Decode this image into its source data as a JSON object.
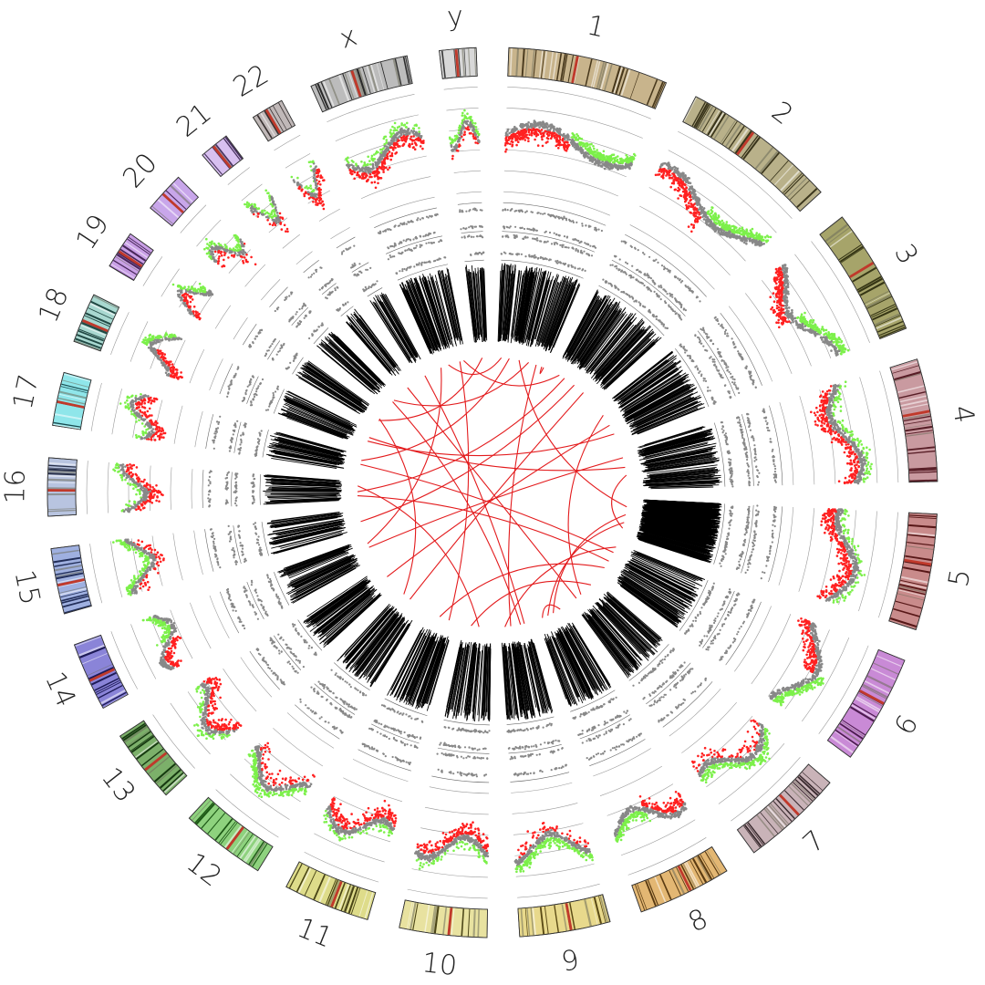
{
  "chart_data": {
    "type": "circos",
    "title": "",
    "chromosomes": [
      {
        "name": "1",
        "length": 249,
        "band_color": "#c8b48c",
        "dark_color": "#3a2a10"
      },
      {
        "name": "2",
        "length": 243,
        "band_color": "#b9b18a",
        "dark_color": "#2c2810"
      },
      {
        "name": "3",
        "length": 198,
        "band_color": "#a6a46a",
        "dark_color": "#2a2a0c"
      },
      {
        "name": "4",
        "length": 191,
        "band_color": "#c99aa0",
        "dark_color": "#4a1018"
      },
      {
        "name": "5",
        "length": 181,
        "band_color": "#c98b8b",
        "dark_color": "#4a0a0a"
      },
      {
        "name": "6",
        "length": 171,
        "band_color": "#c98ad6",
        "dark_color": "#3e1040"
      },
      {
        "name": "7",
        "length": 159,
        "band_color": "#c9b3b8",
        "dark_color": "#2a1c20"
      },
      {
        "name": "8",
        "length": 146,
        "band_color": "#e3b773",
        "dark_color": "#4a2e08"
      },
      {
        "name": "9",
        "length": 141,
        "band_color": "#e8d98c",
        "dark_color": "#4a3a08"
      },
      {
        "name": "10",
        "length": 136,
        "band_color": "#e8e2a0",
        "dark_color": "#3a3408"
      },
      {
        "name": "11",
        "length": 135,
        "band_color": "#dedc8a",
        "dark_color": "#383408"
      },
      {
        "name": "12",
        "length": 133,
        "band_color": "#8ed27e",
        "dark_color": "#104a0a"
      },
      {
        "name": "13",
        "length": 115,
        "band_color": "#7cb06a",
        "dark_color": "#0c2e08"
      },
      {
        "name": "14",
        "length": 107,
        "band_color": "#8a84d8",
        "dark_color": "#12104a"
      },
      {
        "name": "15",
        "length": 102,
        "band_color": "#9fb0e0",
        "dark_color": "#14204a"
      },
      {
        "name": "16",
        "length": 90,
        "band_color": "#b8c4e0",
        "dark_color": "#18203a"
      },
      {
        "name": "17",
        "length": 83,
        "band_color": "#8fe6ea",
        "dark_color": "#0c3a3e"
      },
      {
        "name": "18",
        "length": 78,
        "band_color": "#a8d8d0",
        "dark_color": "#123a34"
      },
      {
        "name": "19",
        "length": 59,
        "band_color": "#c9a0e6",
        "dark_color": "#3a1a4a"
      },
      {
        "name": "20",
        "length": 64,
        "band_color": "#c8a6ea",
        "dark_color": "#3a1c4e"
      },
      {
        "name": "21",
        "length": 47,
        "band_color": "#d8c0f0",
        "dark_color": "#3a2450"
      },
      {
        "name": "22",
        "length": 51,
        "band_color": "#c0b8b8",
        "dark_color": "#2a2424"
      },
      {
        "name": "x",
        "length": 155,
        "band_color": "#bcbcbc",
        "dark_color": "#1a1a1a"
      },
      {
        "name": "y",
        "length": 57,
        "band_color": "#d8d8d8",
        "dark_color": "#2a2a2a"
      }
    ],
    "tracks": [
      {
        "name": "copy-number scatter",
        "colors": {
          "gain": "#ff2020",
          "loss": "#7cf04a",
          "neutral": "#888888"
        }
      },
      {
        "name": "B-allele frequency scatter",
        "color": "#888888"
      },
      {
        "name": "mutation density ticks",
        "color": "#000000"
      },
      {
        "name": "structural variant links",
        "color": "#e31a1c"
      }
    ],
    "copy_number_state": [
      {
        "chrom": "1",
        "state": "mixed"
      },
      {
        "chrom": "2",
        "state": "mixed"
      },
      {
        "chrom": "3",
        "state": "mixed"
      },
      {
        "chrom": "4",
        "state": "gain"
      },
      {
        "chrom": "5",
        "state": "gain"
      },
      {
        "chrom": "6",
        "state": "mixed"
      },
      {
        "chrom": "7",
        "state": "loss"
      },
      {
        "chrom": "8",
        "state": "mixed"
      },
      {
        "chrom": "9",
        "state": "loss"
      },
      {
        "chrom": "10",
        "state": "gain"
      },
      {
        "chrom": "11",
        "state": "gain"
      },
      {
        "chrom": "12",
        "state": "loss"
      },
      {
        "chrom": "13",
        "state": "gain"
      },
      {
        "chrom": "14",
        "state": "mixed"
      },
      {
        "chrom": "15",
        "state": "loss"
      },
      {
        "chrom": "16",
        "state": "gain"
      },
      {
        "chrom": "17",
        "state": "gain"
      },
      {
        "chrom": "18",
        "state": "mixed"
      },
      {
        "chrom": "19",
        "state": "mixed"
      },
      {
        "chrom": "20",
        "state": "loss"
      },
      {
        "chrom": "21",
        "state": "loss"
      },
      {
        "chrom": "22",
        "state": "gain"
      },
      {
        "chrom": "x",
        "state": "gain"
      },
      {
        "chrom": "y",
        "state": "loss"
      }
    ],
    "links": [
      {
        "from": [
          "1",
          20
        ],
        "to": [
          "x",
          60
        ]
      },
      {
        "from": [
          "1",
          110
        ],
        "to": [
          "5",
          40
        ]
      },
      {
        "from": [
          "1",
          200
        ],
        "to": [
          "9",
          90
        ]
      },
      {
        "from": [
          "2",
          60
        ],
        "to": [
          "16",
          40
        ]
      },
      {
        "from": [
          "2",
          180
        ],
        "to": [
          "12",
          70
        ]
      },
      {
        "from": [
          "3",
          40
        ],
        "to": [
          "7",
          100
        ]
      },
      {
        "from": [
          "3",
          150
        ],
        "to": [
          "18",
          30
        ]
      },
      {
        "from": [
          "4",
          30
        ],
        "to": [
          "14",
          60
        ]
      },
      {
        "from": [
          "4",
          120
        ],
        "to": [
          "5",
          150
        ]
      },
      {
        "from": [
          "5",
          80
        ],
        "to": [
          "8",
          60
        ]
      },
      {
        "from": [
          "5",
          120
        ],
        "to": [
          "8",
          90
        ]
      },
      {
        "from": [
          "6",
          50
        ],
        "to": [
          "17",
          40
        ]
      },
      {
        "from": [
          "6",
          140
        ],
        "to": [
          "11",
          80
        ]
      },
      {
        "from": [
          "7",
          30
        ],
        "to": [
          "10",
          100
        ]
      },
      {
        "from": [
          "8",
          20
        ],
        "to": [
          "8",
          120
        ]
      },
      {
        "from": [
          "9",
          40
        ],
        "to": [
          "20",
          30
        ]
      },
      {
        "from": [
          "10",
          60
        ],
        "to": [
          "16",
          70
        ]
      },
      {
        "from": [
          "11",
          30
        ],
        "to": [
          "x",
          120
        ]
      },
      {
        "from": [
          "12",
          110
        ],
        "to": [
          "19",
          30
        ]
      },
      {
        "from": [
          "13",
          50
        ],
        "to": [
          "3",
          100
        ]
      },
      {
        "from": [
          "14",
          80
        ],
        "to": [
          "x",
          20
        ]
      },
      {
        "from": [
          "15",
          40
        ],
        "to": [
          "2",
          120
        ]
      },
      {
        "from": [
          "16",
          20
        ],
        "to": [
          "6",
          100
        ]
      },
      {
        "from": [
          "17",
          60
        ],
        "to": [
          "1",
          60
        ]
      },
      {
        "from": [
          "18",
          50
        ],
        "to": [
          "4",
          80
        ]
      },
      {
        "from": [
          "19",
          20
        ],
        "to": [
          "y",
          30
        ]
      },
      {
        "from": [
          "20",
          40
        ],
        "to": [
          "1",
          160
        ]
      },
      {
        "from": [
          "21",
          20
        ],
        "to": [
          "7",
          130
        ]
      },
      {
        "from": [
          "22",
          30
        ],
        "to": [
          "9",
          20
        ]
      },
      {
        "from": [
          "x",
          140
        ],
        "to": [
          "2",
          30
        ]
      },
      {
        "from": [
          "1",
          230
        ],
        "to": [
          "1",
          240
        ]
      },
      {
        "from": [
          "6",
          20
        ],
        "to": [
          "9",
          120
        ]
      }
    ]
  }
}
